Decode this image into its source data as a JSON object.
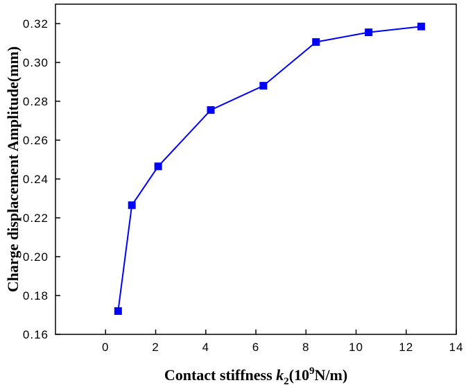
{
  "chart_data": {
    "type": "line",
    "title": "",
    "xlabel_parts": {
      "prefix": "Contact stiffness ",
      "var": "k",
      "sub": "2",
      "mid": "(10",
      "sup": "9",
      "suffix": "N/m)"
    },
    "ylabel": "Charge displacement Amplitude(mm)",
    "xlim": [
      -2,
      14
    ],
    "ylim": [
      0.16,
      0.33
    ],
    "xticks": [
      0,
      2,
      4,
      6,
      8,
      10,
      12,
      14
    ],
    "xtick_labels": [
      "0",
      "2",
      "4",
      "6",
      "8",
      "10",
      "12",
      "14"
    ],
    "yticks": [
      0.16,
      0.18,
      0.2,
      0.22,
      0.24,
      0.26,
      0.28,
      0.3,
      0.32
    ],
    "ytick_labels": [
      "0.16",
      "0.18",
      "0.20",
      "0.22",
      "0.24",
      "0.26",
      "0.28",
      "0.30",
      "0.32"
    ],
    "grid": false,
    "series": [
      {
        "color": "#0000ff",
        "marker": "square",
        "x": [
          0.5,
          1.05,
          2.1,
          4.2,
          6.3,
          8.4,
          10.5,
          12.6
        ],
        "y": [
          0.172,
          0.2265,
          0.2465,
          0.2755,
          0.288,
          0.3105,
          0.3155,
          0.3185
        ]
      }
    ]
  }
}
